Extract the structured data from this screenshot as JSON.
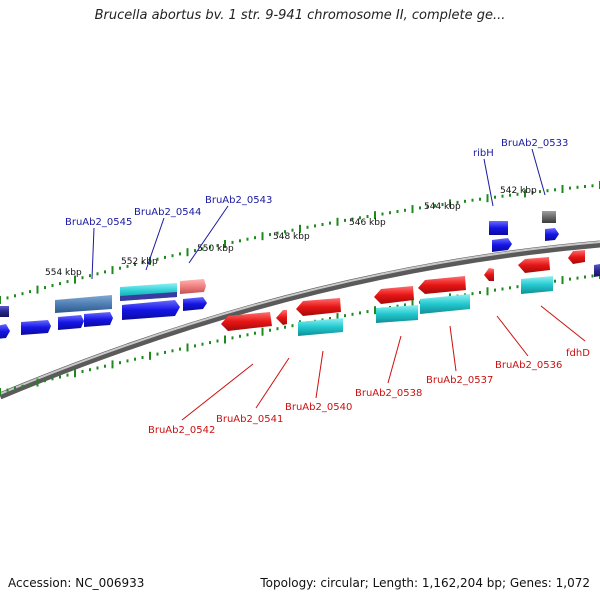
{
  "title": "Brucella abortus bv. 1 str. 9-941 chromosome II, complete ge...",
  "footer": {
    "accession": "Accession: NC_006933",
    "stats": "Topology: circular; Length: 1,162,204 bp; Genes: 1,072"
  },
  "colors": {
    "backbone": "#8a8a8a",
    "ticks": "#1c8a1c",
    "blue_gene": "#1515e6",
    "steel_gene": "#4f7fb5",
    "cyan_gene": "#22c9cf",
    "red_gene": "#e81515",
    "pink_gene": "#f08080",
    "gray_gene": "#6a6a6a",
    "top_label": "#1a1aa0",
    "bottom_label": "#cc1010"
  },
  "scale_labels": [
    "554 kbp",
    "552 kbp",
    "550 kbp",
    "548 kbp",
    "546 kbp",
    "544 kbp",
    "542 kbp"
  ],
  "top_labels": [
    "BruAb2_0545",
    "BruAb2_0544",
    "BruAb2_0543",
    "ribH",
    "BruAb2_0533"
  ],
  "bottom_labels": [
    "BruAb2_0542",
    "BruAb2_0541",
    "BruAb2_0540",
    "BruAb2_0538",
    "BruAb2_0537",
    "BruAb2_0536",
    "fdhD"
  ]
}
